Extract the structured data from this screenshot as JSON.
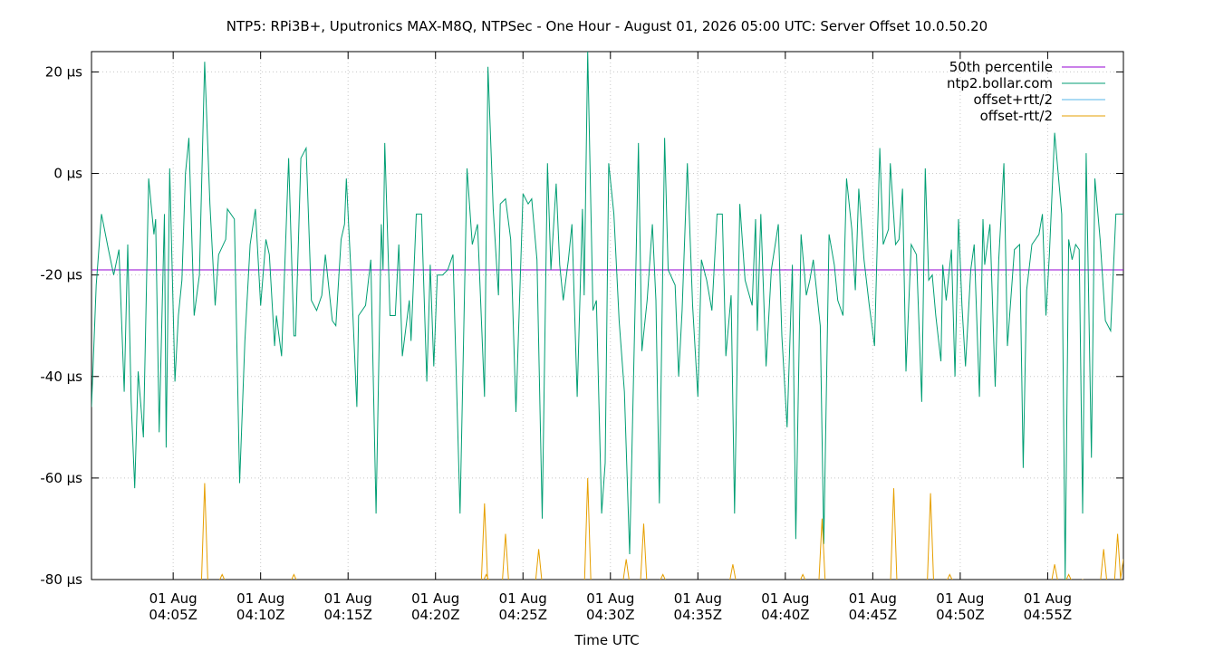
{
  "chart_data": {
    "type": "line",
    "title": "NTP5: RPi3B+, Uputronics MAX-M8Q, NTPSec - One Hour - August 01, 2026 05:00 UTC: Server Offset 10.0.50.20",
    "xlabel": "Time UTC",
    "ylabel": "",
    "x_range": [
      "04:00:20Z",
      "04:59:20Z"
    ],
    "ylim": [
      -80,
      24
    ],
    "y_ticks": [
      {
        "value": 20,
        "label": "20 µs"
      },
      {
        "value": 0,
        "label": "0 µs"
      },
      {
        "value": -20,
        "label": "-20 µs"
      },
      {
        "value": -40,
        "label": "-40 µs"
      },
      {
        "value": -60,
        "label": "-60 µs"
      },
      {
        "value": -80,
        "label": "-80 µs"
      }
    ],
    "x_ticks": [
      {
        "minute": 5,
        "line1": "01 Aug",
        "line2": "04:05Z"
      },
      {
        "minute": 10,
        "line1": "01 Aug",
        "line2": "04:10Z"
      },
      {
        "minute": 15,
        "line1": "01 Aug",
        "line2": "04:15Z"
      },
      {
        "minute": 20,
        "line1": "01 Aug",
        "line2": "04:20Z"
      },
      {
        "minute": 25,
        "line1": "01 Aug",
        "line2": "04:25Z"
      },
      {
        "minute": 30,
        "line1": "01 Aug",
        "line2": "04:30Z"
      },
      {
        "minute": 35,
        "line1": "01 Aug",
        "line2": "04:35Z"
      },
      {
        "minute": 40,
        "line1": "01 Aug",
        "line2": "04:40Z"
      },
      {
        "minute": 45,
        "line1": "01 Aug",
        "line2": "04:45Z"
      },
      {
        "minute": 50,
        "line1": "01 Aug",
        "line2": "04:50Z"
      },
      {
        "minute": 55,
        "line1": "01 Aug",
        "line2": "04:55Z"
      }
    ],
    "grid": true,
    "legend_position": "top-right",
    "series": [
      {
        "name": "50th percentile",
        "color": "#9400d3",
        "points": [
          [
            0.33,
            -19
          ],
          [
            59.33,
            -19
          ]
        ]
      },
      {
        "name": "ntp2.bollar.com",
        "color": "#009e73",
        "points": [
          [
            0.33,
            -46
          ],
          [
            0.6,
            -22
          ],
          [
            0.9,
            -8
          ],
          [
            1.3,
            -15
          ],
          [
            1.6,
            -20
          ],
          [
            1.9,
            -15
          ],
          [
            2.2,
            -43
          ],
          [
            2.4,
            -14
          ],
          [
            2.6,
            -45
          ],
          [
            2.8,
            -62
          ],
          [
            3.0,
            -39
          ],
          [
            3.3,
            -52
          ],
          [
            3.6,
            -1
          ],
          [
            3.9,
            -12
          ],
          [
            4.0,
            -9
          ],
          [
            4.2,
            -51
          ],
          [
            4.5,
            -8
          ],
          [
            4.6,
            -54
          ],
          [
            4.8,
            1
          ],
          [
            5.1,
            -41
          ],
          [
            5.3,
            -28
          ],
          [
            5.5,
            -21
          ],
          [
            5.7,
            0
          ],
          [
            5.9,
            7
          ],
          [
            6.2,
            -28
          ],
          [
            6.5,
            -20
          ],
          [
            6.8,
            22
          ],
          [
            7.1,
            -6
          ],
          [
            7.4,
            -26
          ],
          [
            7.6,
            -16
          ],
          [
            8.0,
            -13
          ],
          [
            8.1,
            -7
          ],
          [
            8.5,
            -9
          ],
          [
            8.8,
            -61
          ],
          [
            9.1,
            -33
          ],
          [
            9.4,
            -14
          ],
          [
            9.7,
            -7
          ],
          [
            10.0,
            -26
          ],
          [
            10.3,
            -13
          ],
          [
            10.5,
            -16
          ],
          [
            10.8,
            -34
          ],
          [
            10.9,
            -28
          ],
          [
            11.2,
            -36
          ],
          [
            11.6,
            3
          ],
          [
            11.9,
            -32
          ],
          [
            12.0,
            -32
          ],
          [
            12.3,
            3
          ],
          [
            12.6,
            5
          ],
          [
            12.9,
            -25
          ],
          [
            13.2,
            -27
          ],
          [
            13.5,
            -24
          ],
          [
            13.7,
            -16
          ],
          [
            14.1,
            -29
          ],
          [
            14.3,
            -30
          ],
          [
            14.6,
            -13
          ],
          [
            14.8,
            -10
          ],
          [
            14.9,
            -1
          ],
          [
            15.2,
            -22
          ],
          [
            15.5,
            -46
          ],
          [
            15.6,
            -28
          ],
          [
            16.0,
            -26
          ],
          [
            16.3,
            -17
          ],
          [
            16.6,
            -67
          ],
          [
            16.9,
            -10
          ],
          [
            17.0,
            -19
          ],
          [
            17.1,
            6
          ],
          [
            17.4,
            -28
          ],
          [
            17.7,
            -28
          ],
          [
            17.9,
            -14
          ],
          [
            18.1,
            -36
          ],
          [
            18.5,
            -25
          ],
          [
            18.6,
            -33
          ],
          [
            18.9,
            -8
          ],
          [
            19.2,
            -8
          ],
          [
            19.5,
            -41
          ],
          [
            19.7,
            -18
          ],
          [
            19.9,
            -38
          ],
          [
            20.1,
            -20
          ],
          [
            20.4,
            -20
          ],
          [
            20.7,
            -19
          ],
          [
            21.0,
            -16
          ],
          [
            21.4,
            -67
          ],
          [
            21.8,
            1
          ],
          [
            22.1,
            -14
          ],
          [
            22.4,
            -10
          ],
          [
            22.8,
            -44
          ],
          [
            23.0,
            21
          ],
          [
            23.3,
            -7
          ],
          [
            23.6,
            -24
          ],
          [
            23.7,
            -6
          ],
          [
            24.0,
            -5
          ],
          [
            24.3,
            -13
          ],
          [
            24.6,
            -47
          ],
          [
            24.9,
            -15
          ],
          [
            25.0,
            -4
          ],
          [
            25.3,
            -6
          ],
          [
            25.5,
            -5
          ],
          [
            25.8,
            -17
          ],
          [
            26.1,
            -68
          ],
          [
            26.4,
            2
          ],
          [
            26.6,
            -19
          ],
          [
            26.9,
            -2
          ],
          [
            27.1,
            -18
          ],
          [
            27.3,
            -25
          ],
          [
            27.6,
            -17
          ],
          [
            27.8,
            -10
          ],
          [
            28.1,
            -44
          ],
          [
            28.4,
            -7
          ],
          [
            28.5,
            -24
          ],
          [
            28.7,
            24
          ],
          [
            29.0,
            -27
          ],
          [
            29.2,
            -25
          ],
          [
            29.5,
            -67
          ],
          [
            29.7,
            -57
          ],
          [
            29.9,
            2
          ],
          [
            30.2,
            -8
          ],
          [
            30.5,
            -29
          ],
          [
            30.8,
            -43
          ],
          [
            31.1,
            -75
          ],
          [
            31.4,
            -28
          ],
          [
            31.6,
            6
          ],
          [
            31.8,
            -35
          ],
          [
            32.1,
            -25
          ],
          [
            32.4,
            -10
          ],
          [
            32.6,
            -25
          ],
          [
            32.8,
            -65
          ],
          [
            33.1,
            7
          ],
          [
            33.3,
            -19
          ],
          [
            33.7,
            -22
          ],
          [
            33.9,
            -40
          ],
          [
            34.1,
            -27
          ],
          [
            34.4,
            2
          ],
          [
            34.7,
            -26
          ],
          [
            35.0,
            -44
          ],
          [
            35.2,
            -17
          ],
          [
            35.5,
            -21
          ],
          [
            35.8,
            -27
          ],
          [
            36.1,
            -8
          ],
          [
            36.4,
            -8
          ],
          [
            36.6,
            -36
          ],
          [
            36.9,
            -24
          ],
          [
            37.1,
            -67
          ],
          [
            37.4,
            -6
          ],
          [
            37.7,
            -21
          ],
          [
            38.1,
            -26
          ],
          [
            38.3,
            -9
          ],
          [
            38.4,
            -31
          ],
          [
            38.6,
            -8
          ],
          [
            38.9,
            -38
          ],
          [
            39.2,
            -19
          ],
          [
            39.6,
            -10
          ],
          [
            39.8,
            -32
          ],
          [
            40.1,
            -50
          ],
          [
            40.4,
            -18
          ],
          [
            40.6,
            -72
          ],
          [
            40.9,
            -12
          ],
          [
            41.2,
            -24
          ],
          [
            41.4,
            -21
          ],
          [
            41.6,
            -17
          ],
          [
            42.0,
            -30
          ],
          [
            42.2,
            -73
          ],
          [
            42.5,
            -12
          ],
          [
            42.8,
            -18
          ],
          [
            43.0,
            -25
          ],
          [
            43.3,
            -28
          ],
          [
            43.5,
            -1
          ],
          [
            43.8,
            -11
          ],
          [
            44.0,
            -23
          ],
          [
            44.2,
            -3
          ],
          [
            44.5,
            -17
          ],
          [
            44.8,
            -26
          ],
          [
            45.1,
            -34
          ],
          [
            45.4,
            5
          ],
          [
            45.6,
            -14
          ],
          [
            45.9,
            -11
          ],
          [
            46.0,
            2
          ],
          [
            46.3,
            -14
          ],
          [
            46.5,
            -13
          ],
          [
            46.7,
            -3
          ],
          [
            46.9,
            -39
          ],
          [
            47.2,
            -14
          ],
          [
            47.5,
            -16
          ],
          [
            47.8,
            -45
          ],
          [
            48.0,
            1
          ],
          [
            48.2,
            -21
          ],
          [
            48.4,
            -20
          ],
          [
            48.6,
            -28
          ],
          [
            48.9,
            -37
          ],
          [
            49.0,
            -18
          ],
          [
            49.2,
            -25
          ],
          [
            49.5,
            -15
          ],
          [
            49.7,
            -40
          ],
          [
            49.9,
            -9
          ],
          [
            50.1,
            -26
          ],
          [
            50.3,
            -38
          ],
          [
            50.6,
            -19
          ],
          [
            50.8,
            -14
          ],
          [
            51.1,
            -44
          ],
          [
            51.3,
            -9
          ],
          [
            51.4,
            -18
          ],
          [
            51.7,
            -10
          ],
          [
            52.0,
            -42
          ],
          [
            52.2,
            -17
          ],
          [
            52.5,
            2
          ],
          [
            52.7,
            -34
          ],
          [
            53.1,
            -15
          ],
          [
            53.4,
            -14
          ],
          [
            53.6,
            -58
          ],
          [
            53.8,
            -23
          ],
          [
            54.1,
            -14
          ],
          [
            54.5,
            -12
          ],
          [
            54.7,
            -8
          ],
          [
            54.9,
            -28
          ],
          [
            55.1,
            -16
          ],
          [
            55.4,
            8
          ],
          [
            55.8,
            -8
          ],
          [
            56.0,
            -80
          ],
          [
            56.2,
            -13
          ],
          [
            56.4,
            -17
          ],
          [
            56.6,
            -14
          ],
          [
            56.8,
            -15
          ],
          [
            57.0,
            -67
          ],
          [
            57.2,
            4
          ],
          [
            57.5,
            -56
          ],
          [
            57.7,
            -1
          ],
          [
            58.0,
            -13
          ],
          [
            58.3,
            -29
          ],
          [
            58.6,
            -31
          ],
          [
            58.9,
            -8
          ],
          [
            59.33,
            -8
          ]
        ]
      },
      {
        "name": "offset+rtt/2",
        "color": "#56b4e9",
        "points": []
      },
      {
        "name": "offset-rtt/2",
        "color": "#e69f00",
        "spikes": [
          [
            6.8,
            -61
          ],
          [
            7.8,
            -79
          ],
          [
            11.9,
            -79
          ],
          [
            22.8,
            -65
          ],
          [
            22.9,
            -79
          ],
          [
            24.0,
            -71
          ],
          [
            25.9,
            -74
          ],
          [
            28.7,
            -60
          ],
          [
            30.9,
            -76
          ],
          [
            31.9,
            -69
          ],
          [
            33.0,
            -79
          ],
          [
            37.0,
            -77
          ],
          [
            41.0,
            -79
          ],
          [
            42.1,
            -68
          ],
          [
            46.2,
            -62
          ],
          [
            48.3,
            -63
          ],
          [
            49.4,
            -79
          ],
          [
            55.4,
            -77
          ],
          [
            56.2,
            -79
          ],
          [
            57.0,
            -80
          ],
          [
            58.2,
            -74
          ],
          [
            59.0,
            -71
          ],
          [
            59.33,
            -76
          ]
        ]
      }
    ]
  }
}
